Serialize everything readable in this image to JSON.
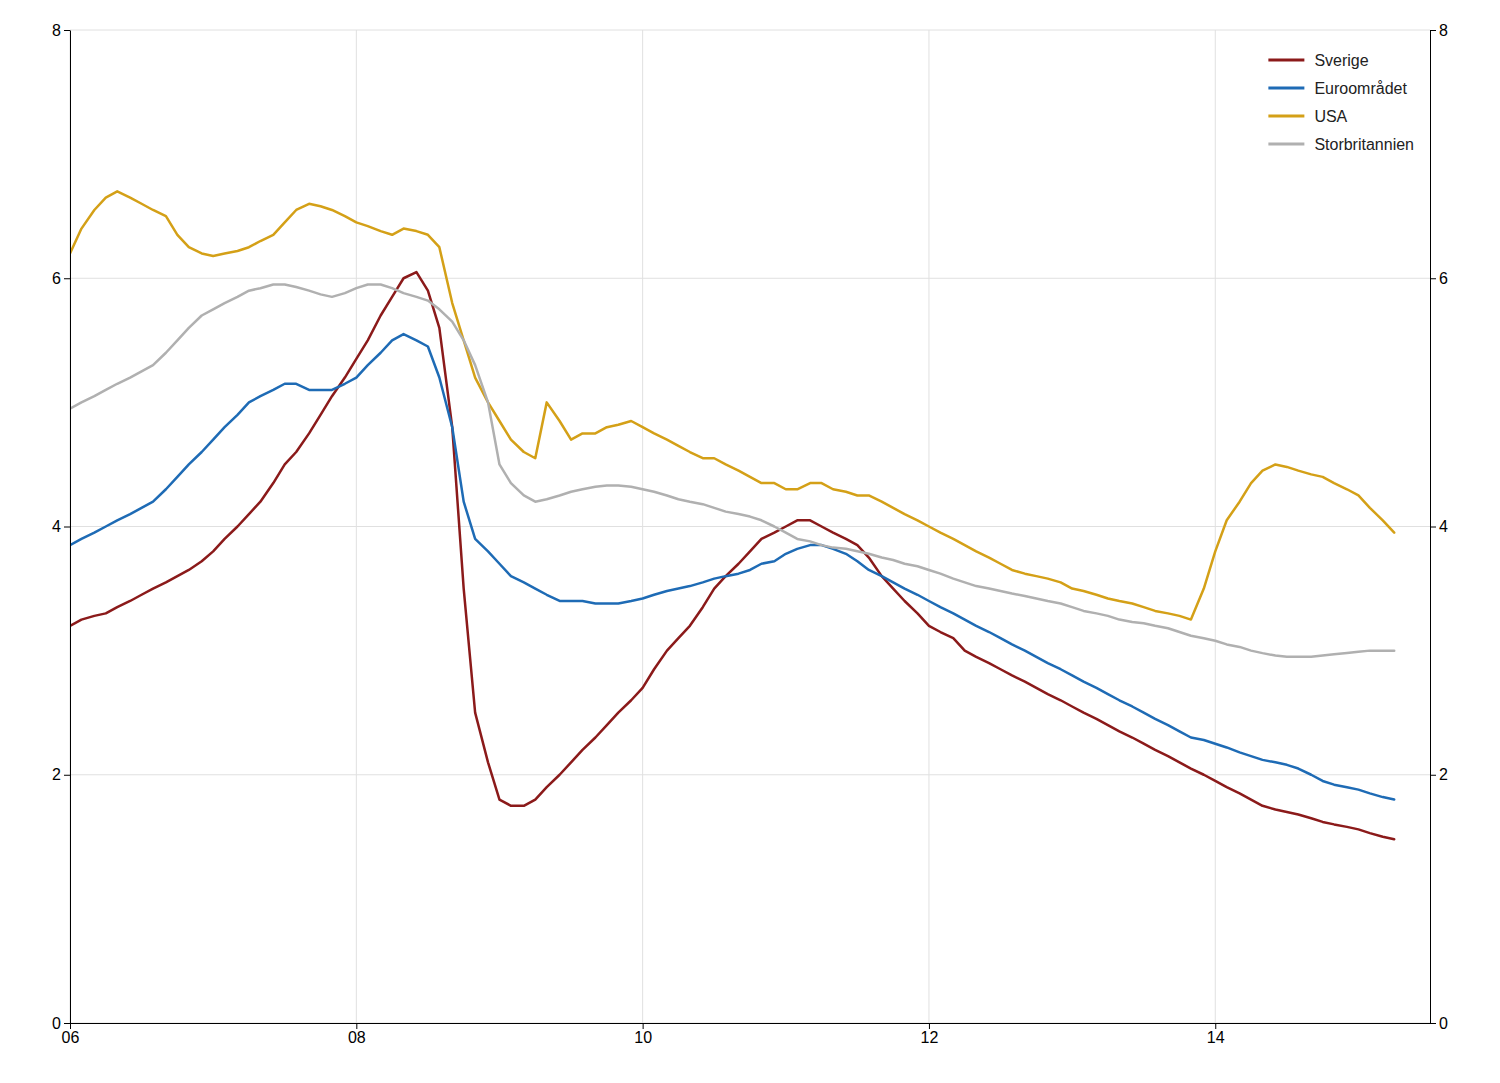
{
  "chart_data": {
    "type": "line",
    "x": [
      2006.0,
      2006.08,
      2006.17,
      2006.25,
      2006.33,
      2006.42,
      2006.5,
      2006.58,
      2006.67,
      2006.75,
      2006.83,
      2006.92,
      2007.0,
      2007.08,
      2007.17,
      2007.25,
      2007.33,
      2007.42,
      2007.5,
      2007.58,
      2007.67,
      2007.75,
      2007.83,
      2007.92,
      2008.0,
      2008.08,
      2008.17,
      2008.25,
      2008.33,
      2008.42,
      2008.5,
      2008.58,
      2008.67,
      2008.75,
      2008.83,
      2008.92,
      2009.0,
      2009.08,
      2009.17,
      2009.25,
      2009.33,
      2009.42,
      2009.5,
      2009.58,
      2009.67,
      2009.75,
      2009.83,
      2009.92,
      2010.0,
      2010.08,
      2010.17,
      2010.25,
      2010.33,
      2010.42,
      2010.5,
      2010.58,
      2010.67,
      2010.75,
      2010.83,
      2010.92,
      2011.0,
      2011.08,
      2011.17,
      2011.25,
      2011.33,
      2011.42,
      2011.5,
      2011.58,
      2011.67,
      2011.75,
      2011.83,
      2011.92,
      2012.0,
      2012.08,
      2012.17,
      2012.25,
      2012.33,
      2012.42,
      2012.5,
      2012.58,
      2012.67,
      2012.75,
      2012.83,
      2012.92,
      2013.0,
      2013.08,
      2013.17,
      2013.25,
      2013.33,
      2013.42,
      2013.5,
      2013.58,
      2013.67,
      2013.75,
      2013.83,
      2013.92,
      2014.0,
      2014.08,
      2014.17,
      2014.25,
      2014.33,
      2014.42,
      2014.5,
      2014.58,
      2014.67,
      2014.75,
      2014.83,
      2014.92,
      2015.0,
      2015.08,
      2015.17,
      2015.25
    ],
    "series": [
      {
        "name": "Sverige",
        "color": "#8B1A1A",
        "values": [
          3.2,
          3.25,
          3.28,
          3.3,
          3.35,
          3.4,
          3.45,
          3.5,
          3.55,
          3.6,
          3.65,
          3.72,
          3.8,
          3.9,
          4.0,
          4.1,
          4.2,
          4.35,
          4.5,
          4.6,
          4.75,
          4.9,
          5.05,
          5.2,
          5.35,
          5.5,
          5.7,
          5.85,
          6.0,
          6.05,
          5.9,
          5.6,
          4.8,
          3.5,
          2.5,
          2.1,
          1.8,
          1.75,
          1.75,
          1.8,
          1.9,
          2.0,
          2.1,
          2.2,
          2.3,
          2.4,
          2.5,
          2.6,
          2.7,
          2.85,
          3.0,
          3.1,
          3.2,
          3.35,
          3.5,
          3.6,
          3.7,
          3.8,
          3.9,
          3.95,
          4.0,
          4.05,
          4.05,
          4.0,
          3.95,
          3.9,
          3.85,
          3.75,
          3.6,
          3.5,
          3.4,
          3.3,
          3.2,
          3.15,
          3.1,
          3.0,
          2.95,
          2.9,
          2.85,
          2.8,
          2.75,
          2.7,
          2.65,
          2.6,
          2.55,
          2.5,
          2.45,
          2.4,
          2.35,
          2.3,
          2.25,
          2.2,
          2.15,
          2.1,
          2.05,
          2.0,
          1.95,
          1.9,
          1.85,
          1.8,
          1.75,
          1.72,
          1.7,
          1.68,
          1.65,
          1.62,
          1.6,
          1.58,
          1.56,
          1.53,
          1.5,
          1.48
        ]
      },
      {
        "name": "Euroområdet",
        "color": "#1E6BB5",
        "values": [
          3.85,
          3.9,
          3.95,
          4.0,
          4.05,
          4.1,
          4.15,
          4.2,
          4.3,
          4.4,
          4.5,
          4.6,
          4.7,
          4.8,
          4.9,
          5.0,
          5.05,
          5.1,
          5.15,
          5.15,
          5.1,
          5.1,
          5.1,
          5.15,
          5.2,
          5.3,
          5.4,
          5.5,
          5.55,
          5.5,
          5.45,
          5.2,
          4.8,
          4.2,
          3.9,
          3.8,
          3.7,
          3.6,
          3.55,
          3.5,
          3.45,
          3.4,
          3.4,
          3.4,
          3.38,
          3.38,
          3.38,
          3.4,
          3.42,
          3.45,
          3.48,
          3.5,
          3.52,
          3.55,
          3.58,
          3.6,
          3.62,
          3.65,
          3.7,
          3.72,
          3.78,
          3.82,
          3.85,
          3.85,
          3.82,
          3.78,
          3.72,
          3.65,
          3.6,
          3.55,
          3.5,
          3.45,
          3.4,
          3.35,
          3.3,
          3.25,
          3.2,
          3.15,
          3.1,
          3.05,
          3.0,
          2.95,
          2.9,
          2.85,
          2.8,
          2.75,
          2.7,
          2.65,
          2.6,
          2.55,
          2.5,
          2.45,
          2.4,
          2.35,
          2.3,
          2.28,
          2.25,
          2.22,
          2.18,
          2.15,
          2.12,
          2.1,
          2.08,
          2.05,
          2.0,
          1.95,
          1.92,
          1.9,
          1.88,
          1.85,
          1.82,
          1.8
        ]
      },
      {
        "name": "USA",
        "color": "#D4A017",
        "values": [
          6.2,
          6.4,
          6.55,
          6.65,
          6.7,
          6.65,
          6.6,
          6.55,
          6.5,
          6.35,
          6.25,
          6.2,
          6.18,
          6.2,
          6.22,
          6.25,
          6.3,
          6.35,
          6.45,
          6.55,
          6.6,
          6.58,
          6.55,
          6.5,
          6.45,
          6.42,
          6.38,
          6.35,
          6.4,
          6.38,
          6.35,
          6.25,
          5.8,
          5.5,
          5.2,
          5.0,
          4.85,
          4.7,
          4.6,
          4.55,
          5.0,
          4.85,
          4.7,
          4.75,
          4.75,
          4.8,
          4.82,
          4.85,
          4.8,
          4.75,
          4.7,
          4.65,
          4.6,
          4.55,
          4.55,
          4.5,
          4.45,
          4.4,
          4.35,
          4.35,
          4.3,
          4.3,
          4.35,
          4.35,
          4.3,
          4.28,
          4.25,
          4.25,
          4.2,
          4.15,
          4.1,
          4.05,
          4.0,
          3.95,
          3.9,
          3.85,
          3.8,
          3.75,
          3.7,
          3.65,
          3.62,
          3.6,
          3.58,
          3.55,
          3.5,
          3.48,
          3.45,
          3.42,
          3.4,
          3.38,
          3.35,
          3.32,
          3.3,
          3.28,
          3.25,
          3.5,
          3.8,
          4.05,
          4.2,
          4.35,
          4.45,
          4.5,
          4.48,
          4.45,
          4.42,
          4.4,
          4.35,
          4.3,
          4.25,
          4.15,
          4.05,
          3.95
        ]
      },
      {
        "name": "Storbritannien",
        "color": "#B0B0B0",
        "values": [
          4.95,
          5.0,
          5.05,
          5.1,
          5.15,
          5.2,
          5.25,
          5.3,
          5.4,
          5.5,
          5.6,
          5.7,
          5.75,
          5.8,
          5.85,
          5.9,
          5.92,
          5.95,
          5.95,
          5.93,
          5.9,
          5.87,
          5.85,
          5.88,
          5.92,
          5.95,
          5.95,
          5.92,
          5.88,
          5.85,
          5.82,
          5.75,
          5.65,
          5.5,
          5.3,
          5.0,
          4.5,
          4.35,
          4.25,
          4.2,
          4.22,
          4.25,
          4.28,
          4.3,
          4.32,
          4.33,
          4.33,
          4.32,
          4.3,
          4.28,
          4.25,
          4.22,
          4.2,
          4.18,
          4.15,
          4.12,
          4.1,
          4.08,
          4.05,
          4.0,
          3.95,
          3.9,
          3.88,
          3.85,
          3.83,
          3.82,
          3.8,
          3.78,
          3.75,
          3.73,
          3.7,
          3.68,
          3.65,
          3.62,
          3.58,
          3.55,
          3.52,
          3.5,
          3.48,
          3.46,
          3.44,
          3.42,
          3.4,
          3.38,
          3.35,
          3.32,
          3.3,
          3.28,
          3.25,
          3.23,
          3.22,
          3.2,
          3.18,
          3.15,
          3.12,
          3.1,
          3.08,
          3.05,
          3.03,
          3.0,
          2.98,
          2.96,
          2.95,
          2.95,
          2.95,
          2.96,
          2.97,
          2.98,
          2.99,
          3.0,
          3.0,
          3.0
        ]
      }
    ],
    "xlim": [
      2006.0,
      2015.5
    ],
    "xticks": [
      {
        "value": 2006,
        "label": "06"
      },
      {
        "value": 2008,
        "label": "08"
      },
      {
        "value": 2010,
        "label": "10"
      },
      {
        "value": 2012,
        "label": "12"
      },
      {
        "value": 2014,
        "label": "14"
      }
    ],
    "ylim": [
      0,
      8
    ],
    "yticks": [
      0,
      2,
      4,
      6,
      8
    ],
    "y2lim": [
      0,
      8
    ],
    "y2ticks": [
      0,
      2,
      4,
      6,
      8
    ],
    "grid": true,
    "legend": "upper right"
  }
}
